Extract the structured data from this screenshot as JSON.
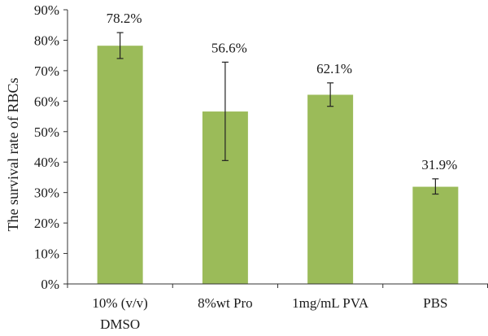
{
  "chart_data": {
    "type": "bar",
    "categories": [
      [
        "10% (v/v)",
        "DMSO"
      ],
      [
        "8%wt Pro"
      ],
      [
        "1mg/mL PVA"
      ],
      [
        "PBS"
      ]
    ],
    "values": [
      78.2,
      56.6,
      62.1,
      31.9
    ],
    "error_high": [
      82.5,
      72.8,
      66.0,
      34.5
    ],
    "error_low": [
      74.0,
      40.5,
      58.3,
      29.5
    ],
    "data_labels": [
      "78.2%",
      "56.6%",
      "62.1%",
      "31.9%"
    ],
    "ylabel": "The survival rate of RBCs",
    "xlabel": "",
    "ylim": [
      0,
      90
    ],
    "yticks": [
      0,
      10,
      20,
      30,
      40,
      50,
      60,
      70,
      80,
      90
    ],
    "ytick_labels": [
      "0%",
      "10%",
      "20%",
      "30%",
      "40%",
      "50%",
      "60%",
      "70%",
      "80%",
      "90%"
    ],
    "bar_color": "#9bbb59",
    "grid": false,
    "legend": "none"
  }
}
